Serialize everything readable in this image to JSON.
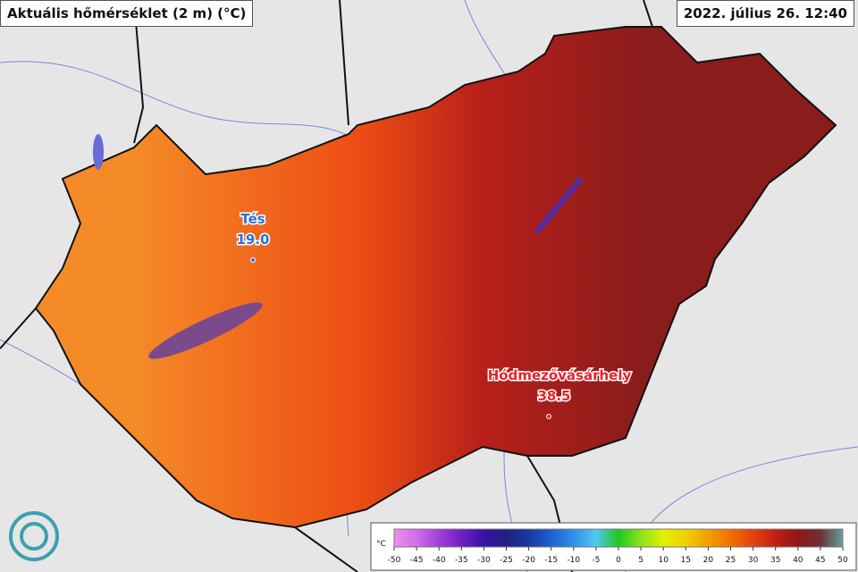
{
  "header": {
    "title": "Aktuális hőmérséklet (2 m) (°C)",
    "timestamp": "2022. július 26. 12:40"
  },
  "stations": [
    {
      "name": "Tés",
      "value": "19.0",
      "color": "#2a6fd6"
    },
    {
      "name": "Hódmezővásárhely",
      "value": "38.5",
      "color": "#e8222a"
    }
  ],
  "legend": {
    "unit": "°C",
    "ticks": [
      -50,
      -45,
      -40,
      -35,
      -30,
      -25,
      -20,
      -15,
      -10,
      -5,
      0,
      5,
      10,
      15,
      20,
      25,
      30,
      35,
      40,
      45,
      50
    ],
    "colors": [
      "#f08cf0",
      "#d070e8",
      "#a040d8",
      "#7020c0",
      "#3a10a8",
      "#202080",
      "#1838a0",
      "#2060d0",
      "#3090e8",
      "#50c8f0",
      "#20c820",
      "#90e020",
      "#e0f000",
      "#f0d000",
      "#f0a000",
      "#f07000",
      "#e84010",
      "#c02010",
      "#901818",
      "#703030",
      "#60a0a0"
    ]
  }
}
